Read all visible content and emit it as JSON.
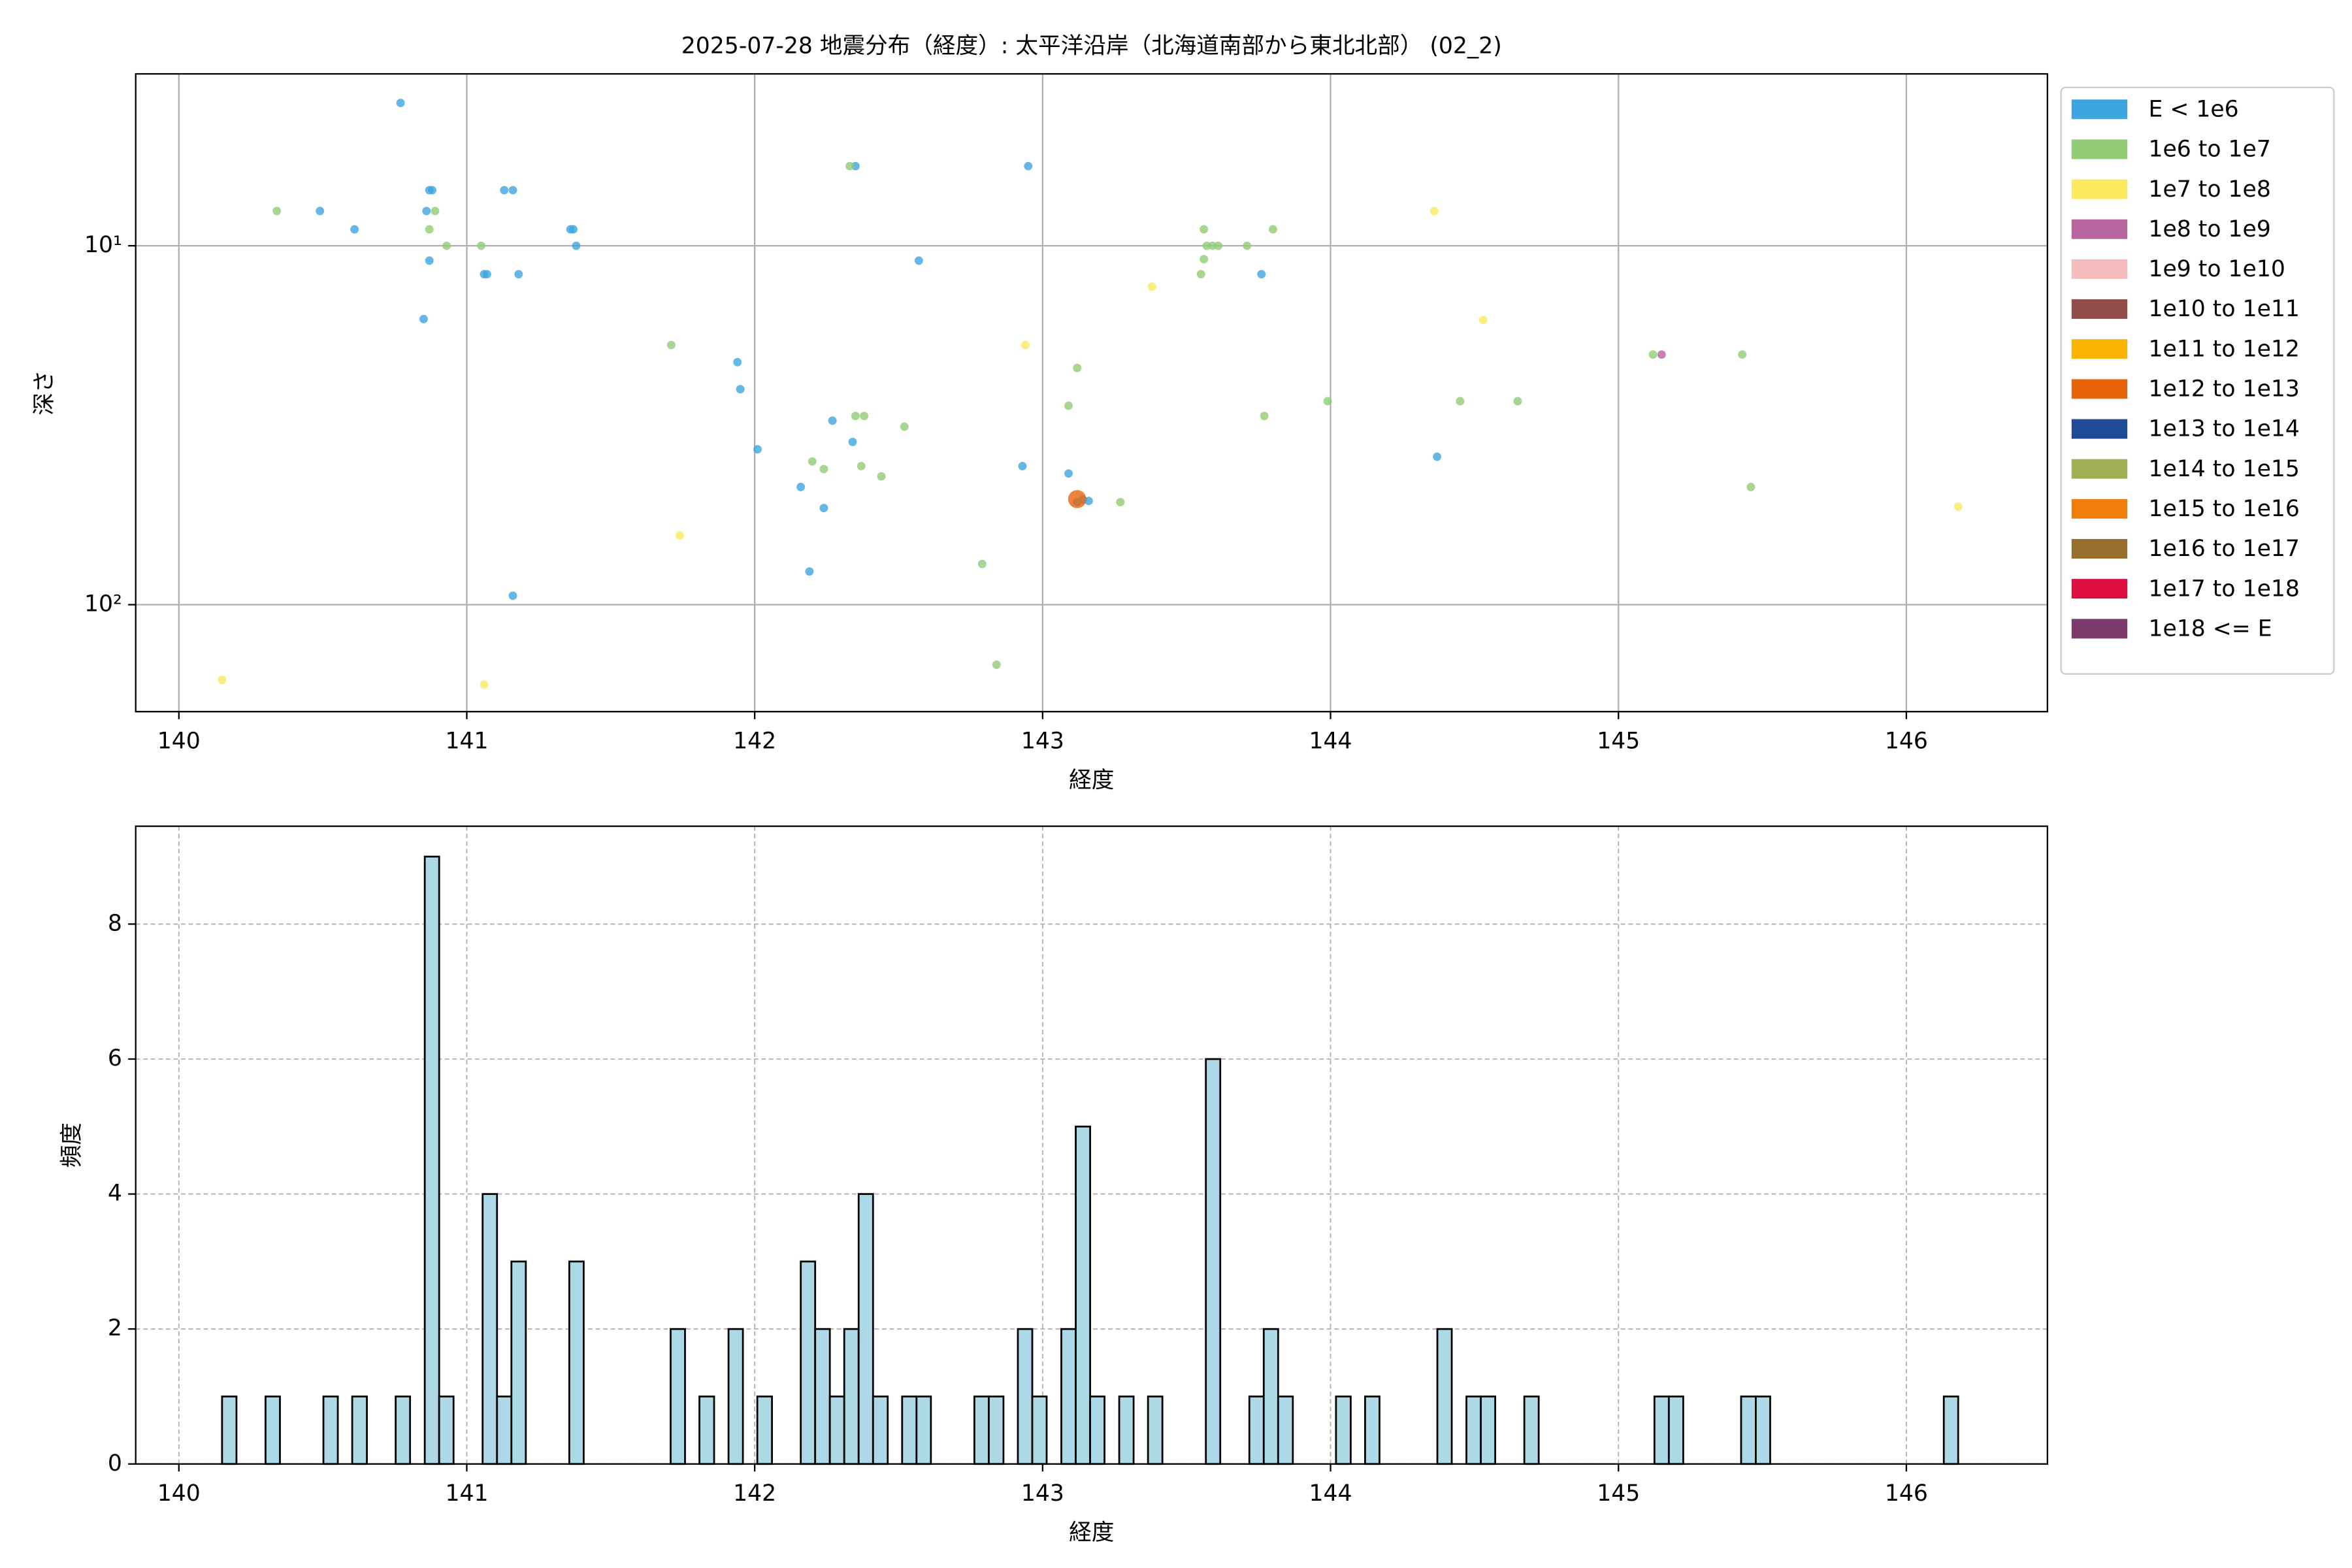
{
  "chart_data": [
    {
      "type": "scatter",
      "title": "2025-07-28 地震分布（経度）: 太平洋沿岸（北海道南部から東北北部） (02_2)",
      "xlabel": "経度",
      "ylabel": "深さ",
      "xlim": [
        139.85,
        146.49
      ],
      "xticks": [
        140,
        141,
        142,
        143,
        144,
        145,
        146
      ],
      "ylim": [
        3.32,
        198.6
      ],
      "yscale": "log",
      "yinverted": true,
      "yticks": [
        {
          "value": 10,
          "label": "10¹"
        },
        {
          "value": 100,
          "label": "10²"
        }
      ],
      "grid": true,
      "legend": "outside upper right",
      "series": [
        {
          "name": "E < 1e6",
          "color": "#3da5e0",
          "x": [
            140.77,
            140.49,
            140.61,
            140.87,
            140.88,
            140.86,
            140.87,
            140.85,
            141.06,
            141.07,
            141.13,
            141.16,
            141.18,
            141.36,
            141.37,
            141.38,
            141.16,
            142.57,
            141.94,
            141.95,
            142.01,
            142.16,
            142.19,
            142.24,
            142.27,
            142.34,
            142.35,
            142.95,
            142.93,
            143.09,
            143.12,
            143.14,
            143.16,
            143.76,
            144.37
          ],
          "values": [
            4.0,
            8.0,
            9.0,
            7.0,
            7.0,
            8.0,
            11.0,
            16.0,
            12.0,
            12.0,
            7.0,
            7.0,
            12.0,
            9.0,
            9.0,
            10.0,
            94.4,
            11.0,
            21.1,
            25.1,
            36.9,
            47.0,
            80.8,
            53.8,
            30.7,
            35.2,
            6.0,
            6.0,
            41.1,
            43.1,
            51.8,
            51.0,
            51.4,
            12.0,
            38.7
          ]
        },
        {
          "name": "1e6 to 1e7",
          "color": "#91cc75",
          "x": [
            140.34,
            140.87,
            140.89,
            140.93,
            141.05,
            141.71,
            142.33,
            142.2,
            142.24,
            142.35,
            142.38,
            142.37,
            142.44,
            142.52,
            142.79,
            142.84,
            143.09,
            143.12,
            143.27,
            143.55,
            143.56,
            143.56,
            143.57,
            143.59,
            143.61,
            143.71,
            143.8,
            143.77,
            143.99,
            144.45,
            144.65,
            145.12,
            145.43,
            145.46
          ],
          "values": [
            8.0,
            9.0,
            8.0,
            10.0,
            10.0,
            18.9,
            6.0,
            39.9,
            41.9,
            29.8,
            29.8,
            41.1,
            43.9,
            31.9,
            77.0,
            147.0,
            27.9,
            21.9,
            51.8,
            12.0,
            10.9,
            9.0,
            10.0,
            10.0,
            10.0,
            10.0,
            9.0,
            29.8,
            27.1,
            27.1,
            27.1,
            20.1,
            20.1,
            47.0
          ]
        },
        {
          "name": "1e7 to 1e8",
          "color": "#fbea5d",
          "x": [
            140.15,
            141.06,
            141.74,
            142.94,
            143.38,
            144.36,
            144.53,
            146.18
          ],
          "values": [
            162.0,
            167.0,
            64.1,
            18.9,
            13.0,
            8.0,
            16.1,
            53.3
          ]
        },
        {
          "name": "1e8 to 1e9",
          "color": "#b8649f",
          "x": [
            145.15
          ],
          "values": [
            20.1
          ]
        },
        {
          "name": "1e9 to 1e10",
          "color": "#f4bcbc",
          "x": [],
          "values": []
        },
        {
          "name": "1e10 to 1e11",
          "color": "#934d4a",
          "x": [],
          "values": []
        },
        {
          "name": "1e11 to 1e12",
          "color": "#f8b200",
          "x": [],
          "values": []
        },
        {
          "name": "1e12 to 1e13",
          "color": "#e8640b",
          "x": [
            143.12
          ],
          "values": [
            50.8
          ]
        },
        {
          "name": "1e13 to 1e14",
          "color": "#1e4a96",
          "x": [],
          "values": []
        },
        {
          "name": "1e14 to 1e15",
          "color": "#9fb055",
          "x": [],
          "values": []
        },
        {
          "name": "1e15 to 1e16",
          "color": "#f07c0c",
          "x": [],
          "values": []
        },
        {
          "name": "1e16 to 1e17",
          "color": "#98702e",
          "x": [],
          "values": []
        },
        {
          "name": "1e17 to 1e18",
          "color": "#dc0e3f",
          "x": [],
          "values": []
        },
        {
          "name": "1e18 <= E",
          "color": "#7c3b6b",
          "x": [],
          "values": []
        }
      ]
    },
    {
      "type": "histogram",
      "xlabel": "経度",
      "ylabel": "頻度",
      "xlim": [
        139.85,
        146.49
      ],
      "xticks": [
        140,
        141,
        142,
        143,
        144,
        145,
        146
      ],
      "ylim": [
        0,
        9.45
      ],
      "yticks": [
        0,
        2,
        4,
        6,
        8
      ],
      "grid": true,
      "color": "#add8e6",
      "edgecolor": "#000000",
      "bins": [
        140.15,
        140.2,
        140.251,
        140.301,
        140.351,
        140.401,
        140.452,
        140.502,
        140.552,
        140.602,
        140.653,
        140.703,
        140.753,
        140.803,
        140.854,
        140.904,
        140.954,
        141.004,
        141.055,
        141.105,
        141.155,
        141.205,
        141.256,
        141.306,
        141.356,
        141.406,
        141.457,
        141.507,
        141.557,
        141.607,
        141.658,
        141.708,
        141.758,
        141.808,
        141.859,
        141.909,
        141.959,
        142.009,
        142.06,
        142.11,
        142.16,
        142.21,
        142.261,
        142.311,
        142.361,
        142.411,
        142.462,
        142.512,
        142.562,
        142.612,
        142.663,
        142.713,
        142.763,
        142.813,
        142.864,
        142.914,
        142.964,
        143.014,
        143.065,
        143.115,
        143.165,
        143.215,
        143.266,
        143.316,
        143.366,
        143.416,
        143.467,
        143.517,
        143.567,
        143.617,
        143.668,
        143.718,
        143.768,
        143.818,
        143.869,
        143.919,
        143.969,
        144.019,
        144.07,
        144.12,
        144.17,
        144.22,
        144.271,
        144.321,
        144.371,
        144.421,
        144.472,
        144.522,
        144.572,
        144.622,
        144.673,
        144.723,
        144.773,
        144.823,
        144.874,
        144.924,
        144.974,
        145.024,
        145.075,
        145.125,
        145.175,
        145.225,
        145.276,
        145.326,
        145.376,
        145.426,
        145.477,
        145.527,
        145.577,
        145.627,
        145.678,
        145.728,
        145.778,
        145.828,
        145.879,
        145.929,
        145.979,
        146.029,
        146.08,
        146.13,
        146.18
      ],
      "values": [
        1,
        0,
        0,
        1,
        0,
        0,
        0,
        1,
        0,
        1,
        0,
        0,
        1,
        0,
        9,
        1,
        0,
        0,
        4,
        1,
        3,
        0,
        0,
        0,
        3,
        0,
        0,
        0,
        0,
        0,
        0,
        2,
        0,
        1,
        0,
        2,
        0,
        1,
        0,
        0,
        3,
        2,
        1,
        2,
        4,
        1,
        0,
        1,
        1,
        0,
        0,
        0,
        1,
        1,
        0,
        2,
        1,
        0,
        2,
        5,
        1,
        0,
        1,
        0,
        1,
        0,
        0,
        0,
        6,
        0,
        0,
        1,
        2,
        1,
        0,
        0,
        0,
        1,
        0,
        1,
        0,
        0,
        0,
        0,
        2,
        0,
        1,
        1,
        0,
        0,
        1,
        0,
        0,
        0,
        0,
        0,
        0,
        0,
        0,
        1,
        1,
        0,
        0,
        0,
        0,
        1,
        1,
        0,
        0,
        0,
        0,
        0,
        0,
        0,
        0,
        0,
        0,
        0,
        0,
        1
      ]
    }
  ]
}
